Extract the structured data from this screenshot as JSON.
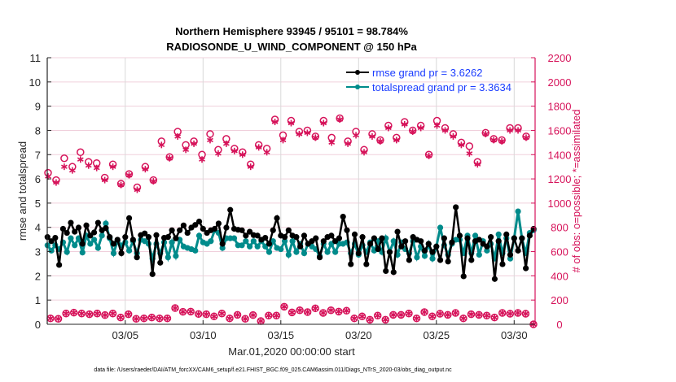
{
  "chart_data": {
    "type": "line",
    "title": [
      "Northern Hemisphere 93945 / 95101 = 98.784%",
      "RADIOSONDE_U_WIND_COMPONENT @ 150 hPa"
    ],
    "xlabel": "Mar.01,2020 00:00:00 start",
    "ylabel": "rmse and totalspread",
    "ylabel_right": "# of obs: o=possible; *=assimilated",
    "ylim": [
      0,
      11
    ],
    "ylim_right": [
      0,
      2200
    ],
    "yticks": [
      "0",
      "1",
      "2",
      "3",
      "4",
      "5",
      "6",
      "7",
      "8",
      "9",
      "10",
      "11"
    ],
    "yticks_right": [
      "0",
      "200",
      "400",
      "600",
      "800",
      "1000",
      "1200",
      "1400",
      "1600",
      "1800",
      "2000",
      "2200"
    ],
    "xticks": [
      "03/05",
      "03/10",
      "03/15",
      "03/20",
      "03/25",
      "03/30"
    ],
    "xtick_days": [
      5,
      10,
      15,
      20,
      25,
      30
    ],
    "grid": true,
    "legend_position": "top-right",
    "colors": {
      "rmse": "#000000",
      "totalspread": "#008b8b",
      "obs": "#d6135a",
      "legend_text": "#1a3cff"
    },
    "series": [
      {
        "name": "rmse grand pr = 3.6262",
        "axis": "left",
        "values": [
          3.6,
          3.43,
          3.57,
          2.45,
          3.94,
          3.77,
          4.19,
          3.82,
          3.99,
          3.32,
          4.08,
          3.66,
          3.79,
          4.19,
          3.88,
          3.97,
          3.6,
          3.32,
          3.49,
          2.93,
          3.6,
          4.38,
          3.49,
          2.76,
          3.68,
          3.75,
          3.6,
          2.07,
          3.68,
          2.54,
          3.57,
          3.6,
          3.88,
          3.55,
          3.88,
          4.08,
          3.77,
          3.99,
          4.1,
          4.24,
          3.94,
          3.77,
          3.88,
          3.94,
          4.16,
          3.32,
          3.99,
          4.72,
          3.94,
          3.9,
          3.88,
          3.66,
          3.82,
          3.68,
          3.66,
          3.49,
          3.57,
          3.32,
          3.88,
          4.38,
          3.66,
          3.6,
          3.88,
          3.66,
          3.6,
          3.21,
          3.66,
          3.32,
          3.43,
          3.55,
          2.76,
          3.43,
          3.6,
          3.66,
          3.43,
          3.55,
          4.44,
          3.88,
          2.48,
          3.71,
          2.93,
          3.6,
          2.48,
          3.32,
          3.55,
          3.1,
          3.55,
          2.2,
          2.98,
          2.15,
          3.82,
          3.21,
          3.43,
          2.65,
          3.6,
          3.49,
          3.43,
          3.04,
          3.32,
          2.98,
          3.21,
          2.65,
          3.55,
          2.59,
          3.38,
          4.83,
          3.66,
          1.98,
          3.55,
          2.65,
          3.43,
          3.49,
          3.32,
          3.21,
          3.6,
          1.87,
          3.43,
          2.48,
          3.71,
          2.87,
          3.55,
          3.04,
          3.55,
          2.31,
          3.66,
          3.94
        ]
      },
      {
        "name": "totalspread grand pr = 3.3634",
        "axis": "left",
        "values": [
          3.26,
          3.04,
          3.26,
          3.1,
          3.38,
          2.98,
          3.55,
          3.26,
          3.55,
          2.96,
          3.66,
          3.32,
          3.49,
          3.15,
          3.66,
          4.16,
          3.55,
          2.93,
          3.43,
          3.26,
          3.38,
          3.04,
          3.43,
          2.93,
          3.49,
          3.43,
          3.32,
          2.71,
          3.32,
          2.93,
          3.38,
          2.76,
          3.38,
          2.82,
          3.49,
          3.21,
          3.15,
          3.1,
          3.04,
          3.66,
          3.38,
          3.32,
          3.43,
          3.88,
          3.77,
          3.15,
          3.55,
          3.55,
          3.55,
          3.26,
          3.26,
          3.43,
          3.21,
          3.43,
          3.21,
          3.43,
          3.21,
          2.98,
          3.43,
          3.15,
          3.1,
          3.43,
          2.87,
          3.43,
          2.98,
          3.32,
          2.93,
          3.32,
          3.21,
          3.1,
          2.82,
          3.32,
          2.98,
          3.32,
          2.98,
          3.32,
          3.32,
          3.38,
          2.93,
          3.32,
          2.87,
          3.26,
          2.98,
          3.38,
          3.04,
          3.43,
          2.98,
          3.55,
          2.98,
          3.43,
          2.87,
          3.38,
          3.1,
          2.93,
          3.43,
          2.76,
          3.21,
          2.82,
          3.32,
          2.71,
          3.21,
          3.99,
          3.26,
          2.87,
          3.32,
          3.49,
          3.49,
          2.93,
          3.66,
          2.93,
          3.66,
          2.87,
          3.43,
          3.04,
          3.32,
          2.71,
          3.71,
          2.93,
          3.55,
          2.71,
          3.55,
          4.66,
          3.55,
          2.93,
          3.77,
          3.88
        ]
      },
      {
        "axis": "right",
        "marker": "o",
        "label": "possible",
        "values": [
          1250,
          1190,
          1370,
          1300,
          1420,
          1340,
          1330,
          1210,
          1320,
          1160,
          1240,
          1130,
          1300,
          1190,
          1510,
          1380,
          1590,
          1480,
          1510,
          1400,
          1570,
          1440,
          1530,
          1450,
          1420,
          1320,
          1480,
          1450,
          1690,
          1560,
          1680,
          1590,
          1600,
          1550,
          1680,
          1540,
          1700,
          1510,
          1590,
          1440,
          1570,
          1520,
          1640,
          1540,
          1670,
          1600,
          1640,
          1400,
          1680,
          1620,
          1570,
          1500,
          1470,
          1340,
          1580,
          1530,
          1520,
          1620,
          1620,
          1550
        ]
      },
      {
        "axis": "right",
        "marker": "*",
        "label": "assimilated",
        "values": [
          1220,
          1170,
          1300,
          1270,
          1360,
          1310,
          1290,
          1190,
          1300,
          1150,
          1230,
          1110,
          1280,
          1180,
          1480,
          1370,
          1550,
          1440,
          1490,
          1360,
          1520,
          1410,
          1490,
          1430,
          1400,
          1300,
          1460,
          1420,
          1670,
          1520,
          1660,
          1570,
          1580,
          1540,
          1660,
          1500,
          1690,
          1490,
          1560,
          1420,
          1550,
          1510,
          1620,
          1520,
          1650,
          1590,
          1620,
          1390,
          1640,
          1600,
          1550,
          1480,
          1410,
          1320,
          1570,
          1520,
          1510,
          1600,
          1600,
          1540
        ]
      },
      {
        "axis": "right",
        "marker": "o*",
        "values": [
          49,
          45,
          89,
          96,
          89,
          83,
          89,
          76,
          89,
          56,
          83,
          45,
          49,
          56,
          49,
          49,
          134,
          103,
          105,
          85,
          83,
          65,
          89,
          49,
          78,
          45,
          76,
          27,
          72,
          72,
          145,
          98,
          116,
          101,
          132,
          94,
          116,
          105,
          112,
          49,
          65,
          38,
          72,
          38,
          78,
          78,
          89,
          49,
          101,
          65,
          87,
          78,
          94,
          49,
          83,
          78,
          72,
          56,
          94,
          87,
          94,
          87,
          0
        ]
      }
    ]
  },
  "footer": "data file: /Users/raeder/DAI/ATM_forcXX/CAM6_setup/f.e21.FHIST_BGC.f09_025.CAM6assim.011/Diags_NTrS_2020-03/obs_diag_output.nc"
}
